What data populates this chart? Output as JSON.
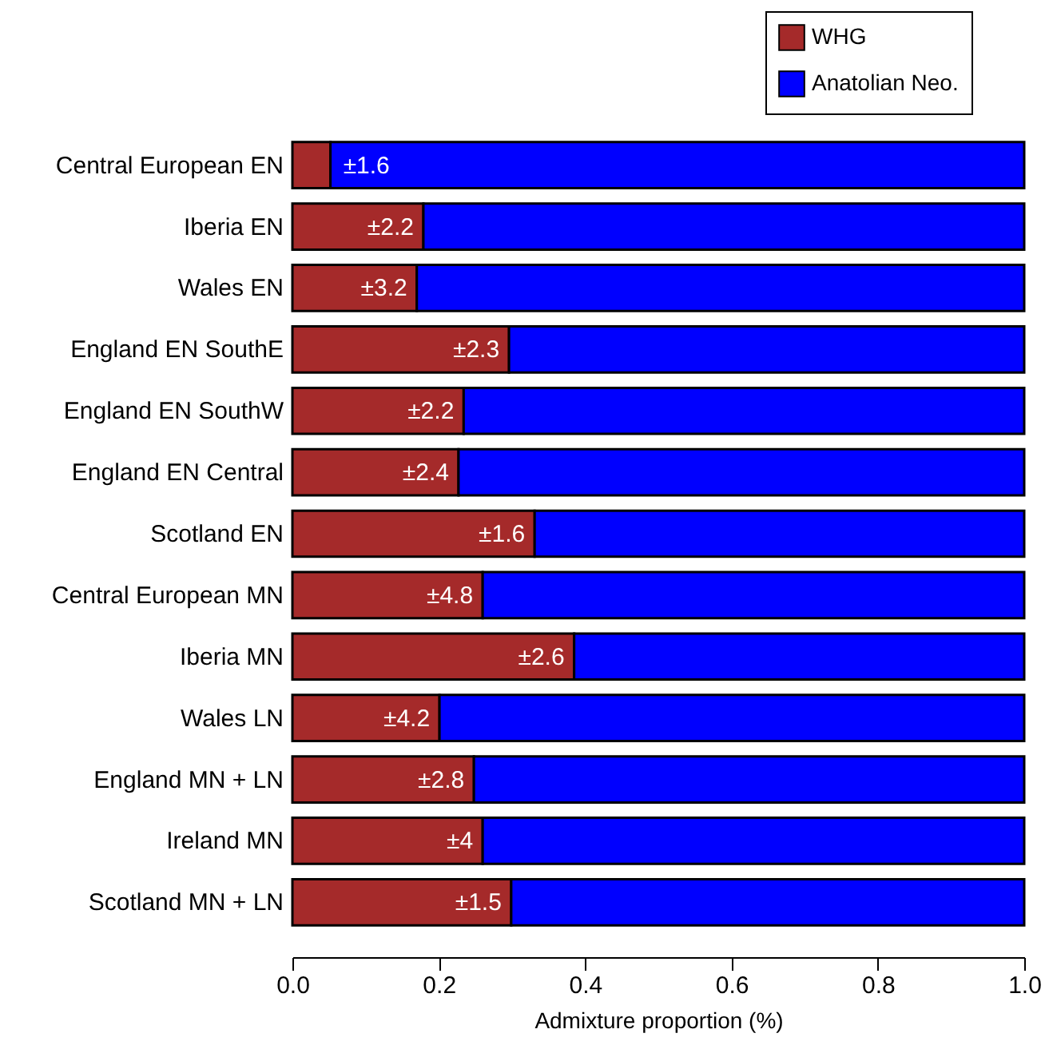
{
  "chart_data": {
    "type": "bar",
    "orientation": "horizontal",
    "stacked": true,
    "xlabel": "Admixture proportion (%)",
    "categories": [
      "Central European EN",
      "Iberia EN",
      "Wales EN",
      "England EN SouthE",
      "England EN SouthW",
      "England EN Central",
      "Scotland EN",
      "Central European MN",
      "Iberia MN",
      "Wales LN",
      "England MN + LN",
      "Ireland MN",
      "Scotland MN + LN"
    ],
    "series": [
      {
        "name": "WHG",
        "color": "#a52a2a",
        "values": [
          0.052,
          0.179,
          0.17,
          0.296,
          0.234,
          0.227,
          0.331,
          0.26,
          0.385,
          0.201,
          0.248,
          0.26,
          0.299
        ]
      },
      {
        "name": "Anatolian Neo.",
        "color": "#0000ff",
        "values": [
          0.948,
          0.821,
          0.83,
          0.704,
          0.766,
          0.773,
          0.669,
          0.74,
          0.615,
          0.799,
          0.752,
          0.74,
          0.701
        ]
      }
    ],
    "annotations": [
      {
        "text": "±1.6",
        "x": 0.052,
        "y": "Central European EN"
      },
      {
        "text": "±2.2",
        "x": 0.179,
        "y": "Iberia EN"
      },
      {
        "text": "±3.2",
        "x": 0.17,
        "y": "Wales EN"
      },
      {
        "text": "±2.3",
        "x": 0.296,
        "y": "England EN SouthE"
      },
      {
        "text": "±2.2",
        "x": 0.234,
        "y": "England EN SouthW"
      },
      {
        "text": "±2.4",
        "x": 0.227,
        "y": "England EN Central"
      },
      {
        "text": "±1.6",
        "x": 0.331,
        "y": "Scotland EN"
      },
      {
        "text": "±4.8",
        "x": 0.26,
        "y": "Central European MN"
      },
      {
        "text": "±2.6",
        "x": 0.385,
        "y": "Iberia MN"
      },
      {
        "text": "±4.2",
        "x": 0.201,
        "y": "Wales LN"
      },
      {
        "text": "±2.8",
        "x": 0.248,
        "y": "England MN + LN"
      },
      {
        "text": "±4",
        "x": 0.26,
        "y": "Ireland MN"
      },
      {
        "text": "±1.5",
        "x": 0.299,
        "y": "Scotland MN + LN"
      }
    ],
    "xlim": [
      0,
      1
    ],
    "xticks": [
      {
        "value": 0,
        "label": "0.0"
      },
      {
        "value": 0.2,
        "label": "0.2"
      },
      {
        "value": 0.4,
        "label": "0.4"
      },
      {
        "value": 0.6,
        "label": "0.6"
      },
      {
        "value": 0.8,
        "label": "0.8"
      },
      {
        "value": 1,
        "label": "1.0"
      }
    ],
    "grid": false,
    "legend": "top right"
  }
}
